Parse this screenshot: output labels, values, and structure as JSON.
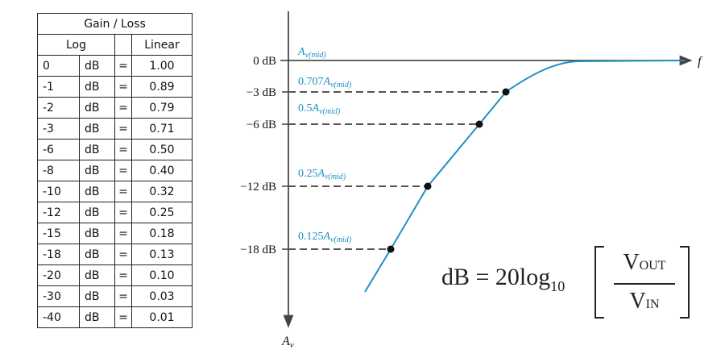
{
  "table": {
    "title": "Gain / Loss",
    "header_log": "Log",
    "header_linear": "Linear",
    "rows": [
      {
        "log": "0",
        "unit": "dB",
        "eq": "=",
        "linear": "1.00"
      },
      {
        "log": "-1",
        "unit": "dB",
        "eq": "=",
        "linear": "0.89"
      },
      {
        "log": "-2",
        "unit": "dB",
        "eq": "=",
        "linear": "0.79"
      },
      {
        "log": "-3",
        "unit": "dB",
        "eq": "=",
        "linear": "0.71"
      },
      {
        "log": "-6",
        "unit": "dB",
        "eq": "=",
        "linear": "0.50"
      },
      {
        "log": "-8",
        "unit": "dB",
        "eq": "=",
        "linear": "0.40"
      },
      {
        "log": "-10",
        "unit": "dB",
        "eq": "=",
        "linear": "0.32"
      },
      {
        "log": "-12",
        "unit": "dB",
        "eq": "=",
        "linear": "0.25"
      },
      {
        "log": "-15",
        "unit": "dB",
        "eq": "=",
        "linear": "0.18"
      },
      {
        "log": "-18",
        "unit": "dB",
        "eq": "=",
        "linear": "0.13"
      },
      {
        "log": "-20",
        "unit": "dB",
        "eq": "=",
        "linear": "0.10"
      },
      {
        "log": "-30",
        "unit": "dB",
        "eq": "=",
        "linear": "0.03"
      },
      {
        "log": "-40",
        "unit": "dB",
        "eq": "=",
        "linear": "0.01"
      }
    ]
  },
  "diagram": {
    "db_labels": [
      "0 dB",
      "−3 dB",
      "−6 dB",
      "−12 dB",
      "−18 dB"
    ],
    "curve_labels": [
      {
        "coef": "",
        "sym": "A",
        "sub": "v(mid)"
      },
      {
        "coef": "0.707",
        "sym": "A",
        "sub": "v(mid)"
      },
      {
        "coef": "0.5",
        "sym": "A",
        "sub": "v(mid)"
      },
      {
        "coef": "0.25",
        "sym": "A",
        "sub": "v(mid)"
      },
      {
        "coef": "0.125",
        "sym": "A",
        "sub": "v(mid)"
      }
    ],
    "x_axis_label": "f",
    "y_axis_label": "A",
    "y_axis_sub": "v",
    "curve_color": "#1e90c8"
  },
  "formula": {
    "lhs": "dB = 20log",
    "lhs_sub": "10",
    "num": "V",
    "num_sub": "OUT",
    "den": "V",
    "den_sub": "IN"
  }
}
